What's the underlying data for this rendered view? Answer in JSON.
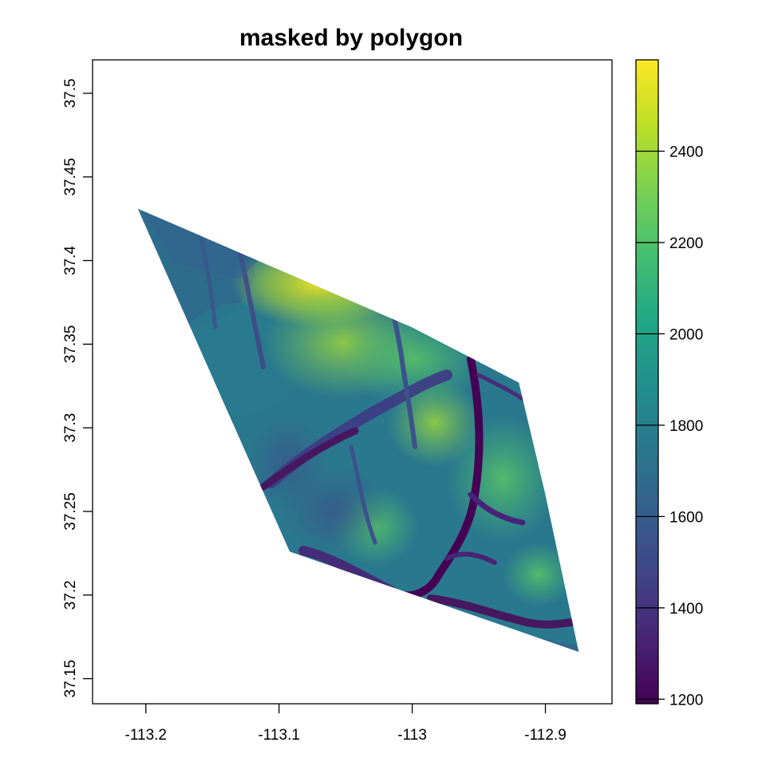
{
  "chart_data": {
    "type": "heatmap",
    "title": "masked by polygon",
    "xlabel": "",
    "ylabel": "",
    "xlim": [
      -113.24,
      -112.85
    ],
    "ylim": [
      37.135,
      37.52
    ],
    "x_ticks": [
      -113.2,
      -113.1,
      -113.0,
      -112.9
    ],
    "x_tick_labels": [
      "-113.2",
      "-113.1",
      "-113",
      "-112.9"
    ],
    "y_ticks": [
      37.15,
      37.2,
      37.25,
      37.3,
      37.35,
      37.4,
      37.45,
      37.5
    ],
    "y_tick_labels": [
      "37.15",
      "37.2",
      "37.25",
      "37.3",
      "37.35",
      "37.4",
      "37.45",
      "37.5"
    ],
    "mask_polygon": [
      [
        -113.206,
        37.431
      ],
      [
        -113.0,
        37.36
      ],
      [
        -112.92,
        37.327
      ],
      [
        -112.9,
        37.26
      ],
      [
        -112.875,
        37.166
      ],
      [
        -113.092,
        37.226
      ]
    ],
    "colorbar": {
      "palette": "viridis",
      "range": [
        1190,
        2600
      ],
      "ticks": [
        1200,
        1400,
        1600,
        1800,
        2000,
        2200,
        2400
      ],
      "tick_labels": [
        "1200",
        "1400",
        "1600",
        "1800",
        "2000",
        "2200",
        "2400"
      ]
    },
    "grid": false,
    "legend": "right"
  }
}
